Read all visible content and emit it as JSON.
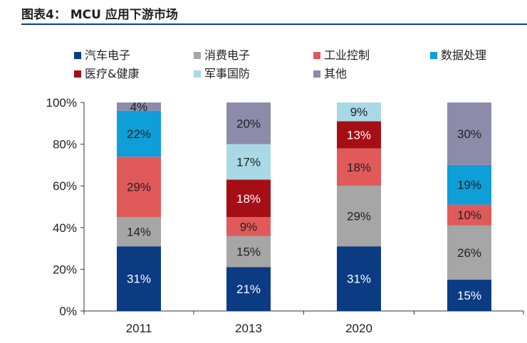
{
  "title": "图表4：  MCU 应用下游市场",
  "chart_data": {
    "type": "bar",
    "stacked": true,
    "categories": [
      "2011",
      "2013",
      "2020",
      ""
    ],
    "yticks": [
      "0%",
      "20%",
      "40%",
      "60%",
      "80%",
      "100%"
    ],
    "ylim": [
      0,
      100
    ],
    "legend_position": "top",
    "series": [
      {
        "name": "汽车电子",
        "color": "#0b3b83",
        "values": [
          31,
          21,
          31,
          15
        ],
        "labels": [
          "31%",
          "21%",
          "31%",
          "15%"
        ]
      },
      {
        "name": "消费电子",
        "color": "#a6a6a6",
        "values": [
          14,
          15,
          29,
          26
        ],
        "labels": [
          "14%",
          "15%",
          "29%",
          "26%"
        ]
      },
      {
        "name": "工业控制",
        "color": "#e05a5a",
        "values": [
          29,
          9,
          18,
          10
        ],
        "labels": [
          "29%",
          "9%",
          "18%",
          "10%"
        ]
      },
      {
        "name": "数据处理",
        "color": "#0e9ed8",
        "values": [
          22,
          0,
          0,
          19
        ],
        "labels": [
          "22%",
          "",
          "",
          "19%"
        ]
      },
      {
        "name": "医疗&健康",
        "color": "#a50e15",
        "values": [
          0,
          18,
          13,
          0
        ],
        "labels": [
          "",
          "18%",
          "13%",
          ""
        ]
      },
      {
        "name": "军事国防",
        "color": "#a9d9e6",
        "values": [
          0,
          17,
          9,
          0
        ],
        "labels": [
          "",
          "17%",
          "9%",
          ""
        ]
      },
      {
        "name": "其他",
        "color": "#8c8caa",
        "values": [
          4,
          20,
          0,
          30
        ],
        "labels": [
          "4%",
          "20%",
          "",
          "30%"
        ]
      }
    ]
  }
}
